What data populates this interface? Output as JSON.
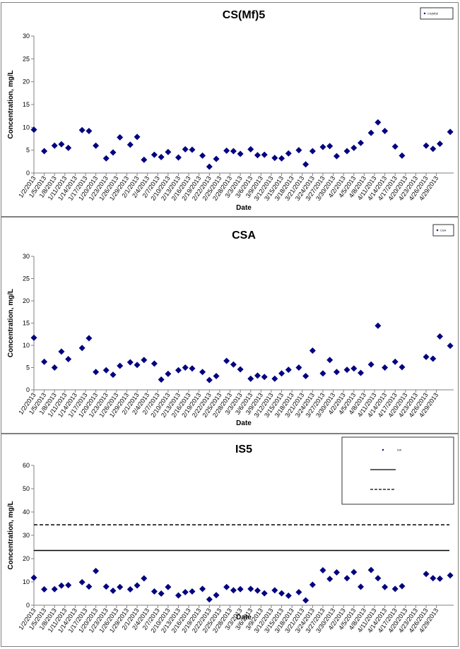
{
  "colors": {
    "marker": "#000080",
    "axis": "#808080",
    "line": "#000000"
  },
  "x_ticks": [
    "1/2/2013",
    "1/5/2013",
    "1/8/2013",
    "1/11/2013",
    "1/14/2013",
    "1/17/2013",
    "1/20/2013",
    "1/23/2013",
    "1/26/2013",
    "1/29/2013",
    "2/1/2013",
    "2/4/2013",
    "2/7/2013",
    "2/10/2013",
    "2/13/2013",
    "2/16/2013",
    "2/19/2013",
    "2/22/2013",
    "2/25/2013",
    "2/28/2013",
    "3/3/2013",
    "3/6/2013",
    "3/9/2013",
    "3/12/2013",
    "3/15/2013",
    "3/18/2013",
    "3/21/2013",
    "3/24/2013",
    "3/27/2013",
    "3/30/2013",
    "4/2/2013",
    "4/5/2013",
    "4/8/2013",
    "4/11/2013",
    "4/14/2013",
    "4/17/2013",
    "4/20/2013",
    "4/23/2013",
    "4/26/2013",
    "4/29/2013"
  ],
  "chart_data": [
    {
      "type": "scatter",
      "title": "CS(Mf)5",
      "xlabel": "Date",
      "ylabel": "Concentration, mg/L",
      "ylim": [
        0,
        30
      ],
      "yticks": [
        0,
        5,
        10,
        15,
        20,
        25,
        30
      ],
      "xlim": [
        "1/2/2013",
        "4/29/2013"
      ],
      "legend": {
        "position": "top-right",
        "entries": [
          "CS(Mf)5"
        ]
      },
      "series": [
        {
          "name": "CS(Mf)5",
          "points": [
            [
              "1/2/2013",
              9.5
            ],
            [
              "1/5/2013",
              4.8
            ],
            [
              "1/8/2013",
              6.0
            ],
            [
              "1/10/2013",
              6.3
            ],
            [
              "1/12/2013",
              5.5
            ],
            [
              "1/16/2013",
              9.4
            ],
            [
              "1/18/2013",
              9.2
            ],
            [
              "1/20/2013",
              6.0
            ],
            [
              "1/23/2013",
              3.2
            ],
            [
              "1/25/2013",
              4.5
            ],
            [
              "1/27/2013",
              7.8
            ],
            [
              "1/30/2013",
              6.2
            ],
            [
              "2/1/2013",
              7.9
            ],
            [
              "2/3/2013",
              2.9
            ],
            [
              "2/6/2013",
              4.0
            ],
            [
              "2/8/2013",
              3.5
            ],
            [
              "2/10/2013",
              4.6
            ],
            [
              "2/13/2013",
              3.4
            ],
            [
              "2/15/2013",
              5.2
            ],
            [
              "2/17/2013",
              5.1
            ],
            [
              "2/20/2013",
              3.8
            ],
            [
              "2/22/2013",
              1.4
            ],
            [
              "2/24/2013",
              3.1
            ],
            [
              "2/27/2013",
              4.9
            ],
            [
              "3/1/2013",
              4.8
            ],
            [
              "3/3/2013",
              4.2
            ],
            [
              "3/6/2013",
              5.2
            ],
            [
              "3/8/2013",
              3.9
            ],
            [
              "3/10/2013",
              4.0
            ],
            [
              "3/13/2013",
              3.3
            ],
            [
              "3/15/2013",
              3.2
            ],
            [
              "3/17/2013",
              4.3
            ],
            [
              "3/20/2013",
              5.0
            ],
            [
              "3/22/2013",
              1.9
            ],
            [
              "3/24/2013",
              4.8
            ],
            [
              "3/27/2013",
              5.7
            ],
            [
              "3/29/2013",
              5.9
            ],
            [
              "3/31/2013",
              3.7
            ],
            [
              "4/3/2013",
              4.8
            ],
            [
              "4/5/2013",
              5.5
            ],
            [
              "4/7/2013",
              6.6
            ],
            [
              "4/10/2013",
              8.8
            ],
            [
              "4/12/2013",
              11.1
            ],
            [
              "4/14/2013",
              9.2
            ],
            [
              "4/17/2013",
              5.8
            ],
            [
              "4/19/2013",
              3.8
            ],
            [
              "4/26/2013",
              6.0
            ],
            [
              "4/28/2013",
              5.3
            ],
            [
              "4/30/2013",
              6.4
            ],
            [
              "5/3/2013",
              9.0
            ]
          ]
        }
      ]
    },
    {
      "type": "scatter",
      "title": "CSA",
      "xlabel": "Date",
      "ylabel": "Concentration, mg/L",
      "ylim": [
        0,
        30
      ],
      "yticks": [
        0,
        5,
        10,
        15,
        20,
        25,
        30
      ],
      "xlim": [
        "1/2/2013",
        "4/29/2013"
      ],
      "legend": {
        "position": "top-right",
        "entries": [
          "CSA"
        ]
      },
      "series": [
        {
          "name": "CSA",
          "points": [
            [
              "1/2/2013",
              11.7
            ],
            [
              "1/5/2013",
              6.3
            ],
            [
              "1/8/2013",
              5.0
            ],
            [
              "1/10/2013",
              8.6
            ],
            [
              "1/12/2013",
              6.9
            ],
            [
              "1/16/2013",
              9.4
            ],
            [
              "1/18/2013",
              11.6
            ],
            [
              "1/20/2013",
              4.0
            ],
            [
              "1/23/2013",
              4.4
            ],
            [
              "1/25/2013",
              3.4
            ],
            [
              "1/27/2013",
              5.4
            ],
            [
              "1/30/2013",
              6.2
            ],
            [
              "2/1/2013",
              5.6
            ],
            [
              "2/3/2013",
              6.7
            ],
            [
              "2/6/2013",
              5.9
            ],
            [
              "2/8/2013",
              2.3
            ],
            [
              "2/10/2013",
              3.6
            ],
            [
              "2/13/2013",
              4.4
            ],
            [
              "2/15/2013",
              5.0
            ],
            [
              "2/17/2013",
              4.8
            ],
            [
              "2/20/2013",
              4.0
            ],
            [
              "2/22/2013",
              2.2
            ],
            [
              "2/24/2013",
              3.1
            ],
            [
              "2/27/2013",
              6.5
            ],
            [
              "3/1/2013",
              5.7
            ],
            [
              "3/3/2013",
              4.6
            ],
            [
              "3/6/2013",
              2.5
            ],
            [
              "3/8/2013",
              3.2
            ],
            [
              "3/10/2013",
              2.9
            ],
            [
              "3/13/2013",
              2.5
            ],
            [
              "3/15/2013",
              3.7
            ],
            [
              "3/17/2013",
              4.5
            ],
            [
              "3/20/2013",
              5.0
            ],
            [
              "3/22/2013",
              3.1
            ],
            [
              "3/24/2013",
              8.8
            ],
            [
              "3/27/2013",
              3.7
            ],
            [
              "3/29/2013",
              6.7
            ],
            [
              "3/31/2013",
              4.0
            ],
            [
              "4/3/2013",
              4.5
            ],
            [
              "4/5/2013",
              4.8
            ],
            [
              "4/7/2013",
              3.8
            ],
            [
              "4/10/2013",
              5.7
            ],
            [
              "4/12/2013",
              14.4
            ],
            [
              "4/14/2013",
              5.0
            ],
            [
              "4/17/2013",
              6.3
            ],
            [
              "4/19/2013",
              5.1
            ],
            [
              "4/26/2013",
              7.4
            ],
            [
              "4/28/2013",
              7.0
            ],
            [
              "4/30/2013",
              12.0
            ],
            [
              "5/3/2013",
              9.9
            ]
          ]
        }
      ]
    },
    {
      "type": "scatter",
      "title": "IS5",
      "xlabel": "Date",
      "ylabel": "Concentration, mg/L",
      "ylim": [
        0,
        60
      ],
      "yticks": [
        0,
        10,
        20,
        30,
        40,
        50,
        60
      ],
      "xlim": [
        "1/2/2013",
        "4/29/2013"
      ],
      "legend": {
        "position": "top-right",
        "entries": [
          "IS5",
          "",
          ""
        ]
      },
      "reference_lines": [
        {
          "style": "solid",
          "value": 23.5
        },
        {
          "style": "dashed",
          "value": 34.5
        }
      ],
      "series": [
        {
          "name": "IS5",
          "points": [
            [
              "1/2/2013",
              11.8
            ],
            [
              "1/5/2013",
              6.8
            ],
            [
              "1/8/2013",
              6.9
            ],
            [
              "1/10/2013",
              8.4
            ],
            [
              "1/12/2013",
              8.6
            ],
            [
              "1/16/2013",
              9.9
            ],
            [
              "1/18/2013",
              8.0
            ],
            [
              "1/20/2013",
              14.7
            ],
            [
              "1/23/2013",
              8.0
            ],
            [
              "1/25/2013",
              6.2
            ],
            [
              "1/27/2013",
              7.8
            ],
            [
              "1/30/2013",
              6.8
            ],
            [
              "2/1/2013",
              8.5
            ],
            [
              "2/3/2013",
              11.5
            ],
            [
              "2/6/2013",
              5.9
            ],
            [
              "2/8/2013",
              5.0
            ],
            [
              "2/10/2013",
              7.8
            ],
            [
              "2/13/2013",
              4.2
            ],
            [
              "2/15/2013",
              5.6
            ],
            [
              "2/17/2013",
              5.9
            ],
            [
              "2/20/2013",
              7.0
            ],
            [
              "2/22/2013",
              2.5
            ],
            [
              "2/24/2013",
              4.3
            ],
            [
              "2/27/2013",
              7.8
            ],
            [
              "3/1/2013",
              6.4
            ],
            [
              "3/3/2013",
              6.9
            ],
            [
              "3/6/2013",
              7.0
            ],
            [
              "3/8/2013",
              6.3
            ],
            [
              "3/10/2013",
              5.1
            ],
            [
              "3/13/2013",
              6.4
            ],
            [
              "3/15/2013",
              5.1
            ],
            [
              "3/17/2013",
              4.1
            ],
            [
              "3/20/2013",
              5.6
            ],
            [
              "3/22/2013",
              2.1
            ],
            [
              "3/24/2013",
              8.8
            ],
            [
              "3/27/2013",
              15.0
            ],
            [
              "3/29/2013",
              11.3
            ],
            [
              "3/31/2013",
              14.1
            ],
            [
              "4/3/2013",
              11.6
            ],
            [
              "4/5/2013",
              14.2
            ],
            [
              "4/7/2013",
              7.9
            ],
            [
              "4/10/2013",
              15.1
            ],
            [
              "4/12/2013",
              11.6
            ],
            [
              "4/14/2013",
              7.8
            ],
            [
              "4/17/2013",
              7.0
            ],
            [
              "4/19/2013",
              8.2
            ],
            [
              "4/26/2013",
              13.4
            ],
            [
              "4/28/2013",
              11.6
            ],
            [
              "4/30/2013",
              11.4
            ],
            [
              "5/3/2013",
              12.8
            ]
          ]
        }
      ]
    }
  ]
}
